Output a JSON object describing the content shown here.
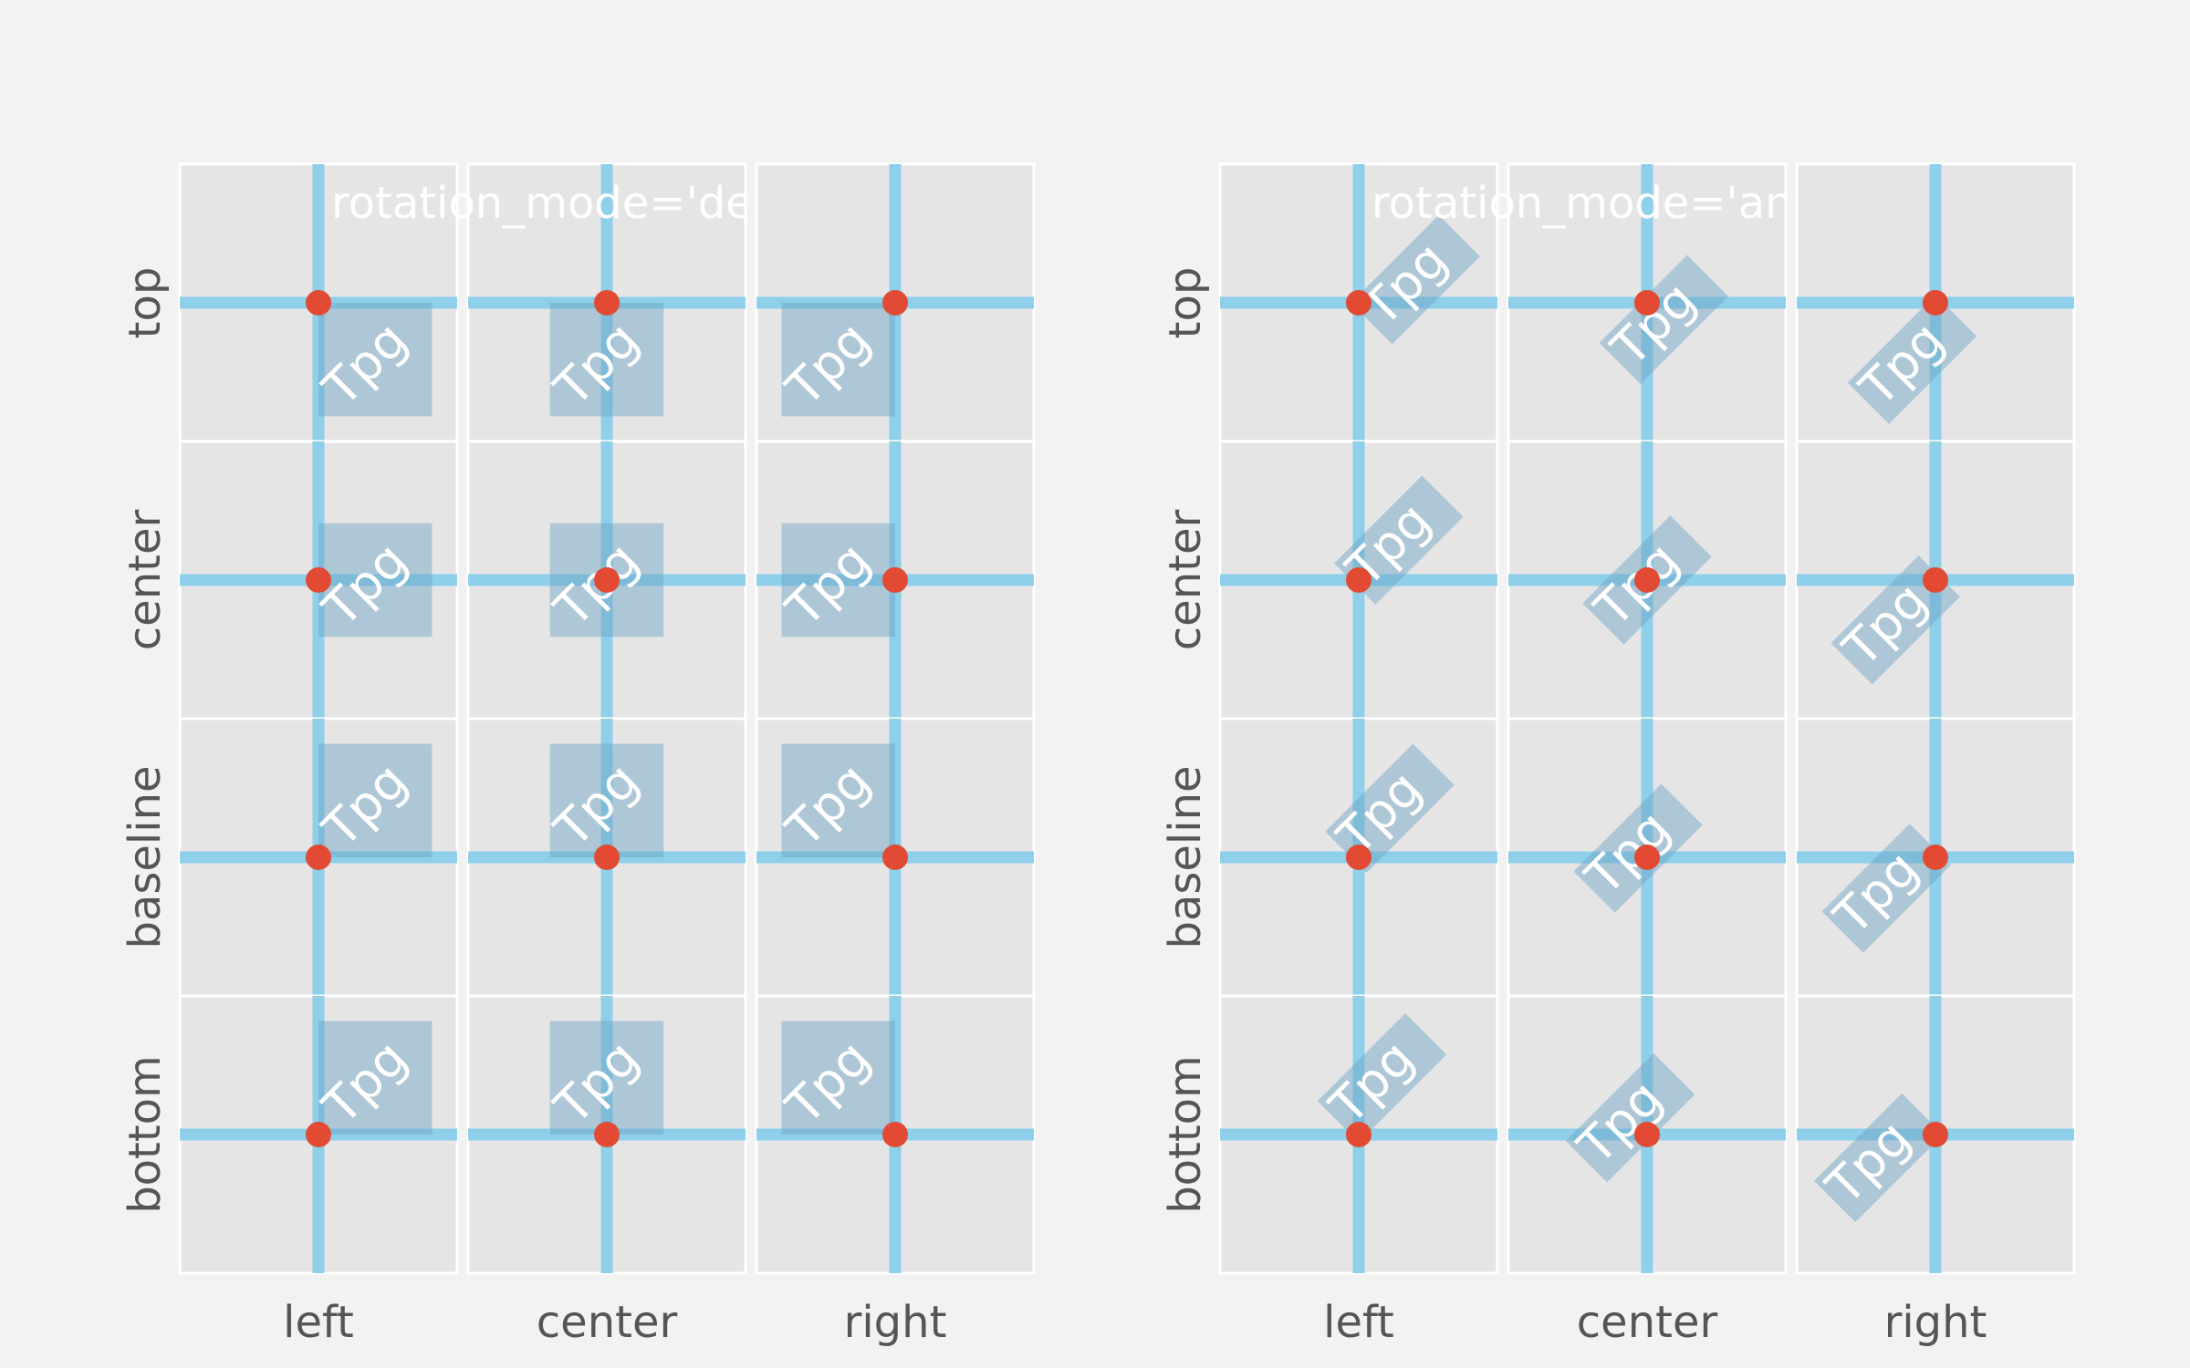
{
  "figure": {
    "sample_text": "Tpg",
    "rotation_deg": 45,
    "column_labels": [
      "left",
      "center",
      "right"
    ],
    "row_labels": [
      "top",
      "center",
      "baseline",
      "bottom"
    ],
    "colors": {
      "background": "#f2f2f2",
      "panel": "#e5e5e5",
      "guide_lines": "#8ecfea",
      "anchor_point": "#e24a33",
      "bbox": "#6aa2c6",
      "label_text": "#555555"
    }
  },
  "subplots": [
    {
      "title": "rotation_mode='default'",
      "mode": "default"
    },
    {
      "title": "rotation_mode='anchor'",
      "mode": "anchor"
    }
  ]
}
